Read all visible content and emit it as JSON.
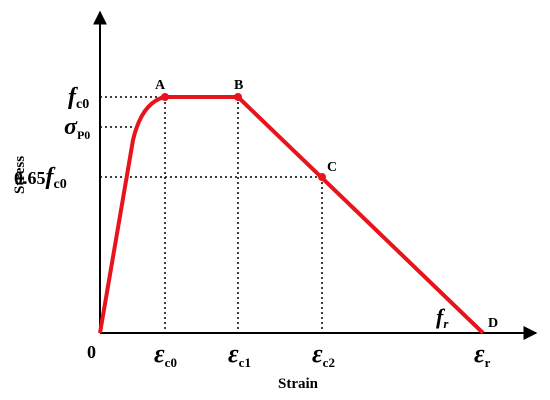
{
  "axes": {
    "x_label": "Strain",
    "y_label": "Stress",
    "origin": "0"
  },
  "points": [
    {
      "label": "A"
    },
    {
      "label": "B"
    },
    {
      "label": "C"
    },
    {
      "label": "D"
    }
  ],
  "y_ticks": [
    {
      "main": "f",
      "sub": "c0"
    },
    {
      "main": "σ",
      "sub": "P0"
    },
    {
      "prefix": "0.65",
      "main": "f",
      "sub": "c0"
    }
  ],
  "x_ticks": [
    {
      "main": "ε",
      "sub": "c0"
    },
    {
      "main": "ε",
      "sub": "c1"
    },
    {
      "main": "ε",
      "sub": "c2"
    },
    {
      "main": "ε",
      "sub": "r"
    }
  ],
  "annotation": {
    "main": "f",
    "sub": "r"
  }
}
